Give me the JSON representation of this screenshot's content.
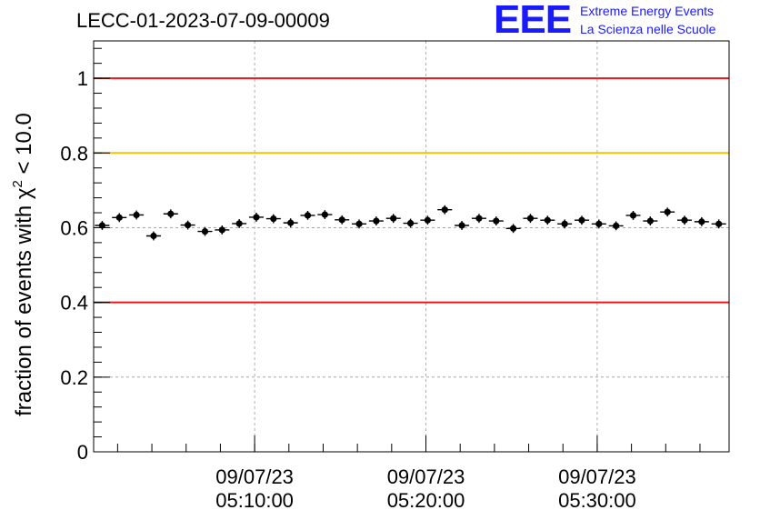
{
  "header": {
    "run_title": "LECC-01-2023-07-09-00009"
  },
  "logo": {
    "mark": "EEE",
    "line1": "Extreme Energy Events",
    "line2": "La Scienza nelle Scuole",
    "color": "#1a1aff"
  },
  "chart_data": {
    "type": "scatter",
    "title": "LECC-01-2023-07-09-00009",
    "ylabel_prefix": "fraction of events with ",
    "ylabel_symbol": "χ",
    "ylabel_sup": "2",
    "ylabel_suffix": " < 10.0",
    "xlabel": "",
    "x_start": "2023-07-09 05:00:36",
    "x_end": "2023-07-09 05:37:42",
    "bin_minutes": 1,
    "ylim": [
      0,
      1.1
    ],
    "yticks": [
      0,
      0.2,
      0.4,
      0.6,
      0.8,
      1
    ],
    "ytick_labels": [
      "0",
      "0.2",
      "0.4",
      "0.6",
      "0.8",
      "1"
    ],
    "xticks": [
      {
        "time": "2023-07-09 05:10:00",
        "date": "09/07/23",
        "clock": "05:10:00"
      },
      {
        "time": "2023-07-09 05:20:00",
        "date": "09/07/23",
        "clock": "05:20:00"
      },
      {
        "time": "2023-07-09 05:30:00",
        "date": "09/07/23",
        "clock": "05:30:00"
      }
    ],
    "reference_lines": [
      {
        "y": 1.0,
        "color": "#e8191b"
      },
      {
        "y": 0.8,
        "color": "#f5c400"
      },
      {
        "y": 0.4,
        "color": "#e8191b"
      }
    ],
    "grid": true,
    "series": [
      {
        "color": "#000000",
        "x": [
          "2023-07-09 05:01:06",
          "2023-07-09 05:02:06",
          "2023-07-09 05:03:06",
          "2023-07-09 05:04:06",
          "2023-07-09 05:05:06",
          "2023-07-09 05:06:06",
          "2023-07-09 05:07:06",
          "2023-07-09 05:08:06",
          "2023-07-09 05:09:06",
          "2023-07-09 05:10:06",
          "2023-07-09 05:11:06",
          "2023-07-09 05:12:06",
          "2023-07-09 05:13:06",
          "2023-07-09 05:14:06",
          "2023-07-09 05:15:06",
          "2023-07-09 05:16:06",
          "2023-07-09 05:17:06",
          "2023-07-09 05:18:06",
          "2023-07-09 05:19:06",
          "2023-07-09 05:20:06",
          "2023-07-09 05:21:06",
          "2023-07-09 05:22:06",
          "2023-07-09 05:23:06",
          "2023-07-09 05:24:06",
          "2023-07-09 05:25:06",
          "2023-07-09 05:26:06",
          "2023-07-09 05:27:06",
          "2023-07-09 05:28:06",
          "2023-07-09 05:29:06",
          "2023-07-09 05:30:06",
          "2023-07-09 05:31:06",
          "2023-07-09 05:32:06",
          "2023-07-09 05:33:06",
          "2023-07-09 05:34:06",
          "2023-07-09 05:35:06",
          "2023-07-09 05:36:06",
          "2023-07-09 05:37:06"
        ],
        "y": [
          0.606,
          0.627,
          0.634,
          0.578,
          0.637,
          0.607,
          0.59,
          0.594,
          0.611,
          0.628,
          0.624,
          0.613,
          0.633,
          0.635,
          0.621,
          0.61,
          0.618,
          0.625,
          0.612,
          0.62,
          0.648,
          0.606,
          0.625,
          0.618,
          0.598,
          0.625,
          0.62,
          0.61,
          0.62,
          0.61,
          0.605,
          0.633,
          0.618,
          0.642,
          0.62,
          0.616,
          0.61
        ],
        "yerr": 0.012
      }
    ]
  }
}
